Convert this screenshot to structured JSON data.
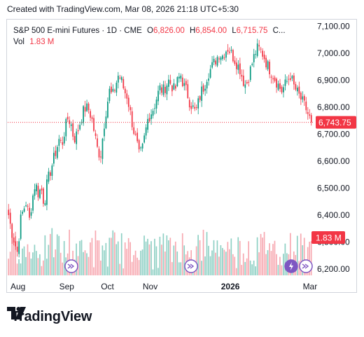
{
  "caption": "Created with TradingView.com, Mar 08, 2026 21:18 UTC+5:30",
  "legend": {
    "symbol": "S&P 500 E-mini Futures · 1D · CME",
    "open_label": "O",
    "open_value": "6,826.00",
    "high_label": "H",
    "high_value": "6,854.00",
    "low_label": "L",
    "low_value": "6,715.75",
    "close_label": "C...",
    "vol_label": "Vol",
    "vol_value": "1.83 M"
  },
  "price_badge": "6,743.75",
  "volume_badge": "1.83 M",
  "brand": "TradingView",
  "colors": {
    "up": "#089981",
    "down": "#f23645",
    "up_volume": "#8ed0c4",
    "down_volume": "#f7a8b0",
    "event_icon": "#7e57c2",
    "price_line": "#f23645"
  },
  "icons": [
    "dividend-icon",
    "dividend-icon",
    "split-icon",
    "dividend-icon"
  ],
  "chart_data": {
    "type": "candlestick",
    "title": "",
    "xlabel": "",
    "ylabel": "",
    "ylim": [
      6150,
      7125
    ],
    "y_ticks": [
      "7,100.00",
      "7,000.00",
      "6,900.00",
      "6,800.00",
      "6,700.00",
      "6,600.00",
      "6,500.00",
      "6,400.00",
      "6,300.00",
      "6,200.00"
    ],
    "y_tick_values": [
      7100,
      7000,
      6900,
      6800,
      6700,
      6600,
      6500,
      6400,
      6300,
      6200
    ],
    "x_ticks": [
      "Aug",
      "Sep",
      "Oct",
      "Nov",
      "2026",
      "Mar"
    ],
    "x_tick_bar_index": [
      2,
      30,
      54,
      78,
      123,
      170
    ],
    "last_price": 6743.75,
    "close_path": [
      6400,
      6340,
      6300,
      6260,
      6380,
      6420,
      6450,
      6380,
      6460,
      6520,
      6480,
      6500,
      6440,
      6520,
      6560,
      6600,
      6640,
      6680,
      6660,
      6720,
      6760,
      6740,
      6680,
      6700,
      6740,
      6780,
      6800,
      6790,
      6760,
      6700,
      6640,
      6620,
      6720,
      6800,
      6860,
      6840,
      6880,
      6920,
      6900,
      6860,
      6840,
      6780,
      6720,
      6680,
      6620,
      6640,
      6700,
      6760,
      6780,
      6800,
      6840,
      6870,
      6860,
      6880,
      6900,
      6880,
      6860,
      6900,
      6920,
      6880,
      6860,
      6820,
      6800,
      6780,
      6820,
      6860,
      6880,
      6920,
      6940,
      6960,
      6980,
      7000,
      6990,
      7010,
      7020,
      7000,
      6980,
      6960,
      6940,
      6900,
      6880,
      6920,
      6960,
      7000,
      7020,
      7010,
      6990,
      6960,
      6940,
      6920,
      6900,
      6880,
      6860,
      6880,
      6900,
      6920,
      6880,
      6860,
      6840,
      6820,
      6800,
      6770,
      6743.75
    ],
    "volume_range": [
      0.3,
      2.3
    ],
    "volume_unit": "M",
    "series": [
      {
        "name": "Vol",
        "last_value": 1.83
      }
    ]
  }
}
